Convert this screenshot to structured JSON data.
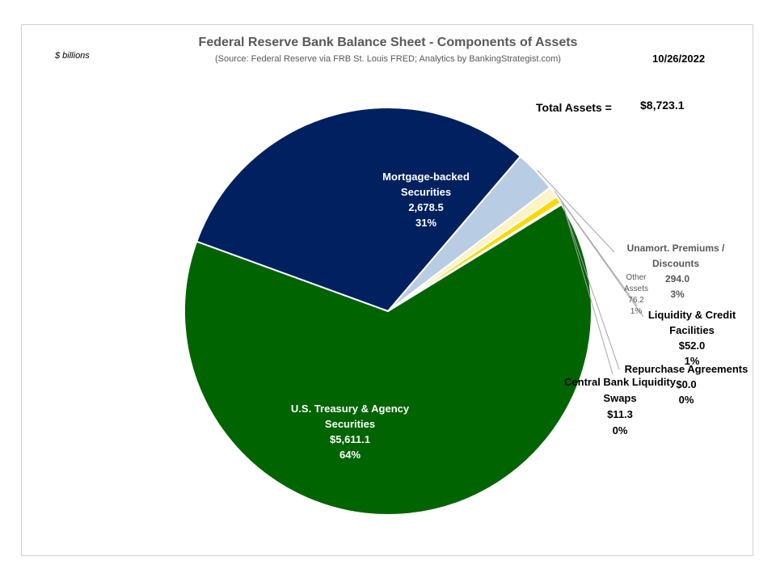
{
  "header": {
    "title": "Federal Reserve Bank Balance Sheet - Components of Assets",
    "subtitle": "(Source: Federal Reserve via FRB St. Louis FRED; Analytics by BankingStrategist.com)",
    "units": "$ billions",
    "date": "10/26/2022",
    "total_label": "Total Assets =",
    "total_value": "$8,723.1"
  },
  "chart_data": {
    "type": "pie",
    "title": "Federal Reserve Bank Balance Sheet - Components of Assets",
    "start_angle_deg": 160,
    "slices": [
      {
        "name": "Mortgage-backed Securities",
        "value": 2678.5,
        "value_label": "2,678.5",
        "pct_label": "31%",
        "color": "#002060"
      },
      {
        "name": "Unamort. Premiums / Discounts",
        "value": 294.0,
        "value_label": "294.0",
        "pct_label": "3%",
        "color": "#b8cce4"
      },
      {
        "name": "Other Assets",
        "value": 76.2,
        "value_label": "76.2",
        "pct_label": "1%",
        "color": "#fdf3c4"
      },
      {
        "name": "Liquidity & Credit Facilities",
        "value": 52.0,
        "value_label": "$52.0",
        "pct_label": "1%",
        "color": "#ffd700"
      },
      {
        "name": "Repurchase Agreements",
        "value": 0.0,
        "value_label": "$0.0",
        "pct_label": "0%",
        "color": "#7f7f7f"
      },
      {
        "name": "Central Bank Liquidity Swaps",
        "value": 11.3,
        "value_label": "$11.3",
        "pct_label": "0%",
        "color": "#e36c09"
      },
      {
        "name": "U.S. Treasury & Agency Securities",
        "value": 5611.1,
        "value_label": "$5,611.1",
        "pct_label": "64%",
        "color": "#006400"
      }
    ]
  },
  "labels": {
    "mbs": {
      "lines": [
        "Mortgage-backed",
        "Securities",
        "2,678.5",
        "31%"
      ]
    },
    "treasury": {
      "lines": [
        "U.S. Treasury & Agency",
        "Securities",
        "$5,611.1",
        "64%"
      ]
    },
    "premiums": {
      "lines": [
        "Unamort. Premiums /",
        "Discounts",
        "294.0",
        "3%"
      ]
    },
    "other": {
      "lines": [
        "Other",
        "Assets",
        "76.2",
        "1%"
      ]
    },
    "liquidity": {
      "lines": [
        "Liquidity & Credit",
        "Facilities",
        "$52.0",
        "1%"
      ]
    },
    "repo": {
      "lines": [
        "Repurchase Agreements",
        "$0.0",
        "0%"
      ]
    },
    "swaps": {
      "lines": [
        "Central Bank Liquidity",
        "Swaps",
        "$11.3",
        "0%"
      ]
    }
  }
}
